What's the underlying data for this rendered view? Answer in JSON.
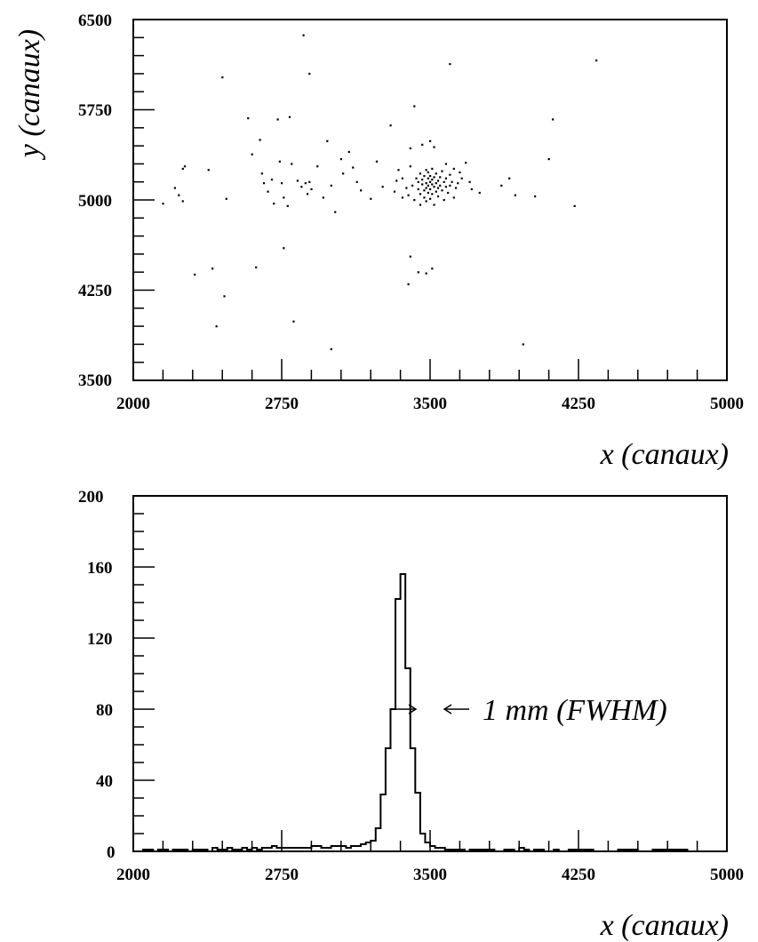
{
  "chart_data": [
    {
      "type": "scatter",
      "title": "",
      "xlabel": "x (canaux)",
      "ylabel": "y (canaux)",
      "xlim": [
        2000,
        5000
      ],
      "ylim": [
        3500,
        6500
      ],
      "xticks": [
        "2000",
        "2750",
        "3500",
        "4250",
        "5000"
      ],
      "yticks": [
        "3500",
        "4250",
        "5000",
        "5750",
        "6500"
      ],
      "points": [
        [
          2150,
          4970
        ],
        [
          2210,
          5100
        ],
        [
          2230,
          5040
        ],
        [
          2250,
          4990
        ],
        [
          2260,
          5280
        ],
        [
          2250,
          5260
        ],
        [
          2310,
          4380
        ],
        [
          2380,
          5250
        ],
        [
          2400,
          4430
        ],
        [
          2420,
          3950
        ],
        [
          2450,
          6020
        ],
        [
          2460,
          4200
        ],
        [
          2470,
          5010
        ],
        [
          2580,
          5680
        ],
        [
          2600,
          5380
        ],
        [
          2620,
          4440
        ],
        [
          2640,
          5500
        ],
        [
          2650,
          5220
        ],
        [
          2660,
          5140
        ],
        [
          2680,
          5070
        ],
        [
          2700,
          5170
        ],
        [
          2710,
          4970
        ],
        [
          2730,
          5670
        ],
        [
          2740,
          5320
        ],
        [
          2750,
          5140
        ],
        [
          2760,
          5020
        ],
        [
          2780,
          4950
        ],
        [
          2790,
          5690
        ],
        [
          2800,
          5300
        ],
        [
          2810,
          3990
        ],
        [
          2830,
          5160
        ],
        [
          2850,
          5110
        ],
        [
          2870,
          5140
        ],
        [
          2880,
          5050
        ],
        [
          2890,
          6050
        ],
        [
          2890,
          5150
        ],
        [
          2900,
          5090
        ],
        [
          2930,
          5280
        ],
        [
          2960,
          5020
        ],
        [
          2980,
          5490
        ],
        [
          3000,
          5120
        ],
        [
          3020,
          4900
        ],
        [
          3050,
          5340
        ],
        [
          3060,
          5220
        ],
        [
          3090,
          5400
        ],
        [
          3110,
          5270
        ],
        [
          3130,
          5150
        ],
        [
          3150,
          5080
        ],
        [
          3200,
          5010
        ],
        [
          3230,
          5320
        ],
        [
          3260,
          5110
        ],
        [
          3300,
          5620
        ],
        [
          3320,
          5070
        ],
        [
          3340,
          5250
        ],
        [
          3360,
          5180
        ],
        [
          3380,
          5100
        ],
        [
          3390,
          5040
        ],
        [
          3400,
          5430
        ],
        [
          3400,
          4530
        ],
        [
          3390,
          4300
        ],
        [
          3410,
          5120
        ],
        [
          3420,
          5780
        ],
        [
          3420,
          5000
        ],
        [
          3430,
          5180
        ],
        [
          3440,
          5090
        ],
        [
          3440,
          5150
        ],
        [
          3450,
          5220
        ],
        [
          3450,
          5050
        ],
        [
          3450,
          4960
        ],
        [
          3460,
          5130
        ],
        [
          3460,
          5170
        ],
        [
          3470,
          5080
        ],
        [
          3470,
          5200
        ],
        [
          3470,
          5020
        ],
        [
          3480,
          5140
        ],
        [
          3480,
          5250
        ],
        [
          3480,
          5100
        ],
        [
          3480,
          4990
        ],
        [
          3490,
          5180
        ],
        [
          3490,
          5060
        ],
        [
          3490,
          5120
        ],
        [
          3490,
          5230
        ],
        [
          3500,
          5150
        ],
        [
          3500,
          5010
        ],
        [
          3500,
          5200
        ],
        [
          3500,
          5090
        ],
        [
          3510,
          5130
        ],
        [
          3510,
          5260
        ],
        [
          3510,
          5050
        ],
        [
          3510,
          5170
        ],
        [
          3520,
          5110
        ],
        [
          3520,
          5190
        ],
        [
          3520,
          4960
        ],
        [
          3530,
          5140
        ],
        [
          3530,
          5070
        ],
        [
          3530,
          5220
        ],
        [
          3540,
          5160
        ],
        [
          3540,
          5100
        ],
        [
          3540,
          5030
        ],
        [
          3550,
          5190
        ],
        [
          3550,
          5120
        ],
        [
          3560,
          5080
        ],
        [
          3560,
          5240
        ],
        [
          3570,
          5150
        ],
        [
          3570,
          5000
        ],
        [
          3580,
          5110
        ],
        [
          3580,
          5180
        ],
        [
          3590,
          5060
        ],
        [
          3600,
          5210
        ],
        [
          3600,
          5120
        ],
        [
          3610,
          5150
        ],
        [
          3620,
          5020
        ],
        [
          3630,
          5100
        ],
        [
          3650,
          5230
        ],
        [
          3660,
          5180
        ],
        [
          3680,
          5310
        ],
        [
          3710,
          5090
        ],
        [
          3750,
          5060
        ],
        [
          3460,
          5460
        ],
        [
          3500,
          5490
        ],
        [
          3520,
          5440
        ],
        [
          3440,
          4400
        ],
        [
          3480,
          4390
        ],
        [
          3510,
          4430
        ],
        [
          3600,
          6130
        ],
        [
          3860,
          5120
        ],
        [
          3900,
          5180
        ],
        [
          3930,
          5040
        ],
        [
          3970,
          3800
        ],
        [
          4030,
          5030
        ],
        [
          4100,
          5340
        ],
        [
          4120,
          5670
        ],
        [
          4230,
          4950
        ],
        [
          4340,
          6160
        ],
        [
          2860,
          6370
        ],
        [
          3000,
          3760
        ],
        [
          2760,
          4600
        ],
        [
          3330,
          5160
        ],
        [
          3360,
          5020
        ],
        [
          3400,
          5280
        ],
        [
          3580,
          5300
        ],
        [
          3620,
          5260
        ],
        [
          3640,
          5140
        ],
        [
          3700,
          5150
        ]
      ]
    },
    {
      "type": "bar",
      "title": "",
      "xlabel": "x (canaux)",
      "ylabel": "",
      "xlim": [
        2000,
        5000
      ],
      "ylim": [
        0,
        200
      ],
      "xticks": [
        "2000",
        "2750",
        "3500",
        "4250",
        "5000"
      ],
      "yticks": [
        "0",
        "40",
        "80",
        "120",
        "160",
        "200"
      ],
      "bin_width": 25,
      "bin_start": 2000,
      "values": [
        0,
        0,
        1,
        1,
        0,
        1,
        1,
        0,
        1,
        1,
        1,
        0,
        1,
        1,
        1,
        0,
        2,
        1,
        1,
        2,
        1,
        1,
        2,
        1,
        2,
        1,
        2,
        2,
        3,
        2,
        2,
        2,
        2,
        2,
        2,
        2,
        3,
        3,
        2,
        2,
        3,
        3,
        3,
        2,
        3,
        3,
        4,
        5,
        6,
        13,
        32,
        58,
        80,
        142,
        156,
        103,
        58,
        33,
        10,
        5,
        3,
        2,
        2,
        1,
        1,
        1,
        1,
        0,
        1,
        1,
        1,
        1,
        1,
        0,
        0,
        1,
        1,
        0,
        2,
        1,
        0,
        1,
        1,
        0,
        0,
        1,
        0,
        0,
        1,
        1,
        1,
        1,
        1,
        0,
        0,
        0,
        0,
        0,
        1,
        1,
        1,
        1,
        0,
        0,
        0,
        1,
        1,
        1,
        1,
        1,
        1,
        1,
        0,
        0,
        0,
        0
      ],
      "annotations": [
        {
          "text": "1 mm (FWHM)",
          "x": 3500,
          "y": 80
        }
      ]
    }
  ]
}
